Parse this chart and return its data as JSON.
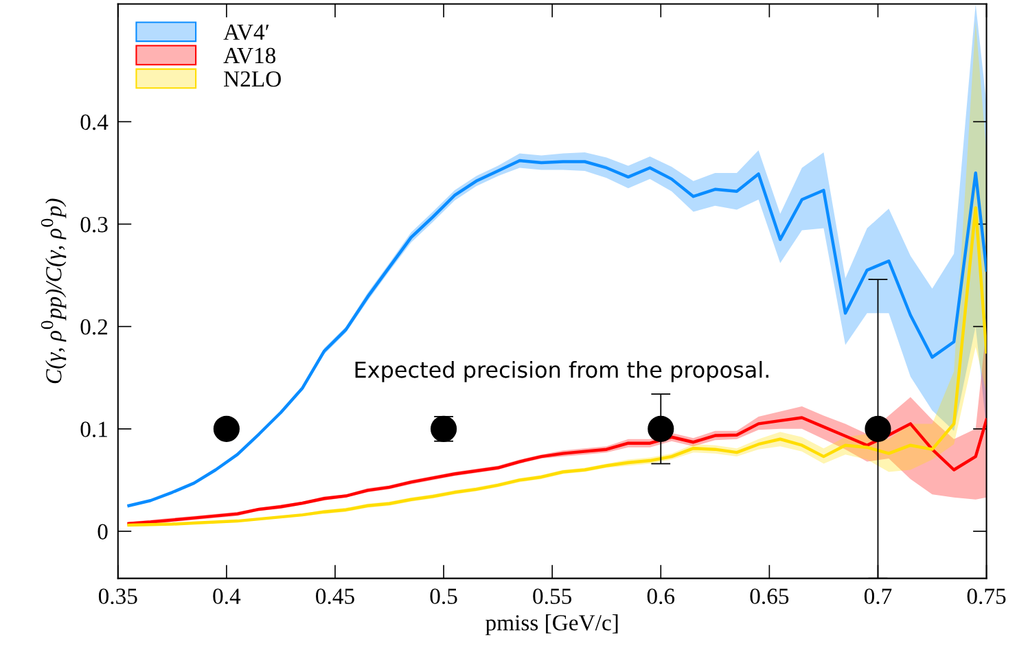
{
  "chart_data": {
    "type": "line",
    "xlabel": "pmiss [GeV/c]",
    "ylabel": "C(γ, ρ$^{0}$pp)/C(γ, ρ$^{0}$p)",
    "annotations": [
      "Expected precision from the proposal."
    ],
    "x": [
      0.355,
      0.365,
      0.375,
      0.385,
      0.395,
      0.405,
      0.415,
      0.425,
      0.435,
      0.445,
      0.455,
      0.465,
      0.475,
      0.485,
      0.495,
      0.505,
      0.515,
      0.525,
      0.535,
      0.545,
      0.555,
      0.565,
      0.575,
      0.585,
      0.595,
      0.605,
      0.615,
      0.625,
      0.635,
      0.645,
      0.655,
      0.665,
      0.675,
      0.685,
      0.695,
      0.705,
      0.715,
      0.725,
      0.735,
      0.745,
      0.75
    ],
    "series": [
      {
        "name": "AV4′",
        "color": "#0a8cff",
        "marker": "none",
        "line_style": "solid",
        "values": [
          0.025,
          0.03,
          0.038,
          0.047,
          0.06,
          0.075,
          0.095,
          0.116,
          0.14,
          0.176,
          0.197,
          0.229,
          0.258,
          0.287,
          0.307,
          0.328,
          0.342,
          0.352,
          0.362,
          0.36,
          0.361,
          0.361,
          0.355,
          0.346,
          0.355,
          0.344,
          0.327,
          0.334,
          0.332,
          0.349,
          0.285,
          0.324,
          0.333,
          0.213,
          0.255,
          0.264,
          0.211,
          0.17,
          0.185,
          0.35,
          0.255
        ],
        "lower": [
          0.024,
          0.029,
          0.037,
          0.046,
          0.059,
          0.074,
          0.094,
          0.115,
          0.138,
          0.173,
          0.194,
          0.225,
          0.254,
          0.282,
          0.302,
          0.323,
          0.337,
          0.347,
          0.355,
          0.353,
          0.353,
          0.352,
          0.345,
          0.335,
          0.344,
          0.332,
          0.312,
          0.318,
          0.314,
          0.324,
          0.262,
          0.294,
          0.296,
          0.182,
          0.213,
          0.213,
          0.151,
          0.118,
          0.098,
          0.2,
          0.1
        ],
        "upper": [
          0.026,
          0.031,
          0.039,
          0.048,
          0.061,
          0.076,
          0.096,
          0.117,
          0.142,
          0.179,
          0.2,
          0.233,
          0.262,
          0.292,
          0.312,
          0.333,
          0.347,
          0.357,
          0.369,
          0.367,
          0.369,
          0.37,
          0.365,
          0.357,
          0.366,
          0.356,
          0.342,
          0.35,
          0.35,
          0.372,
          0.31,
          0.355,
          0.37,
          0.247,
          0.296,
          0.315,
          0.269,
          0.237,
          0.271,
          0.515,
          0.418
        ]
      },
      {
        "name": "AV18",
        "color": "#ff0000",
        "marker": "none",
        "line_style": "solid",
        "values": [
          0.0075,
          0.009,
          0.011,
          0.013,
          0.015,
          0.017,
          0.0215,
          0.024,
          0.0275,
          0.032,
          0.0345,
          0.04,
          0.043,
          0.048,
          0.052,
          0.056,
          0.059,
          0.062,
          0.068,
          0.073,
          0.076,
          0.078,
          0.08,
          0.086,
          0.086,
          0.092,
          0.087,
          0.0935,
          0.094,
          0.105,
          0.108,
          0.111,
          0.102,
          0.093,
          0.084,
          0.094,
          0.105,
          0.08,
          0.06,
          0.073,
          0.109
        ],
        "lower": [
          0.006,
          0.007,
          0.009,
          0.011,
          0.013,
          0.015,
          0.02,
          0.022,
          0.026,
          0.03,
          0.033,
          0.038,
          0.041,
          0.046,
          0.05,
          0.054,
          0.057,
          0.06,
          0.066,
          0.071,
          0.073,
          0.075,
          0.077,
          0.082,
          0.082,
          0.088,
          0.083,
          0.089,
          0.09,
          0.099,
          0.1,
          0.1,
          0.09,
          0.08,
          0.068,
          0.071,
          0.051,
          0.036,
          0.033,
          0.031,
          0.033
        ],
        "upper": [
          0.009,
          0.011,
          0.013,
          0.015,
          0.017,
          0.019,
          0.023,
          0.026,
          0.029,
          0.034,
          0.036,
          0.042,
          0.045,
          0.05,
          0.054,
          0.058,
          0.061,
          0.064,
          0.07,
          0.075,
          0.079,
          0.081,
          0.083,
          0.09,
          0.09,
          0.096,
          0.091,
          0.098,
          0.098,
          0.112,
          0.117,
          0.122,
          0.113,
          0.105,
          0.095,
          0.113,
          0.131,
          0.109,
          0.09,
          0.1,
          0.2
        ]
      },
      {
        "name": "N2LO",
        "color": "#ffdd00",
        "marker": "none",
        "line_style": "solid",
        "values": [
          0.006,
          0.0065,
          0.007,
          0.008,
          0.009,
          0.01,
          0.012,
          0.014,
          0.016,
          0.019,
          0.021,
          0.025,
          0.027,
          0.031,
          0.034,
          0.038,
          0.041,
          0.045,
          0.05,
          0.053,
          0.058,
          0.06,
          0.064,
          0.067,
          0.069,
          0.073,
          0.081,
          0.08,
          0.077,
          0.085,
          0.09,
          0.084,
          0.073,
          0.084,
          0.082,
          0.076,
          0.084,
          0.08,
          0.105,
          0.316,
          0.175
        ],
        "lower": [
          0.005,
          0.0055,
          0.006,
          0.007,
          0.008,
          0.009,
          0.011,
          0.013,
          0.015,
          0.017,
          0.019,
          0.023,
          0.025,
          0.029,
          0.032,
          0.036,
          0.039,
          0.043,
          0.048,
          0.051,
          0.056,
          0.058,
          0.062,
          0.064,
          0.066,
          0.07,
          0.077,
          0.076,
          0.073,
          0.08,
          0.083,
          0.078,
          0.066,
          0.075,
          0.07,
          0.058,
          0.06,
          0.07,
          0.085,
          0.18,
          0.135
        ],
        "upper": [
          0.007,
          0.0075,
          0.008,
          0.009,
          0.01,
          0.011,
          0.013,
          0.015,
          0.017,
          0.021,
          0.023,
          0.027,
          0.029,
          0.033,
          0.036,
          0.04,
          0.043,
          0.047,
          0.052,
          0.055,
          0.06,
          0.062,
          0.066,
          0.07,
          0.072,
          0.076,
          0.085,
          0.084,
          0.081,
          0.09,
          0.097,
          0.092,
          0.081,
          0.092,
          0.095,
          0.09,
          0.105,
          0.105,
          0.156,
          0.498,
          0.37
        ]
      },
      {
        "type": "scatter",
        "color": "#000000",
        "marker": "circle",
        "x": [
          0.4,
          0.5,
          0.6,
          0.7
        ],
        "values": [
          0.1,
          0.1,
          0.1,
          0.1
        ],
        "errors": [
          null,
          0.012,
          0.034,
          0.146
        ]
      }
    ],
    "xlim": [
      0.35,
      0.75
    ],
    "ylim": [
      -0.046,
      0.515
    ],
    "xticks": [
      0.35,
      0.4,
      0.45,
      0.5,
      0.55,
      0.6,
      0.65,
      0.7,
      0.75
    ],
    "yticks": [
      0,
      0.1,
      0.2,
      0.3,
      0.4
    ],
    "grid": false,
    "legend": "top left"
  }
}
